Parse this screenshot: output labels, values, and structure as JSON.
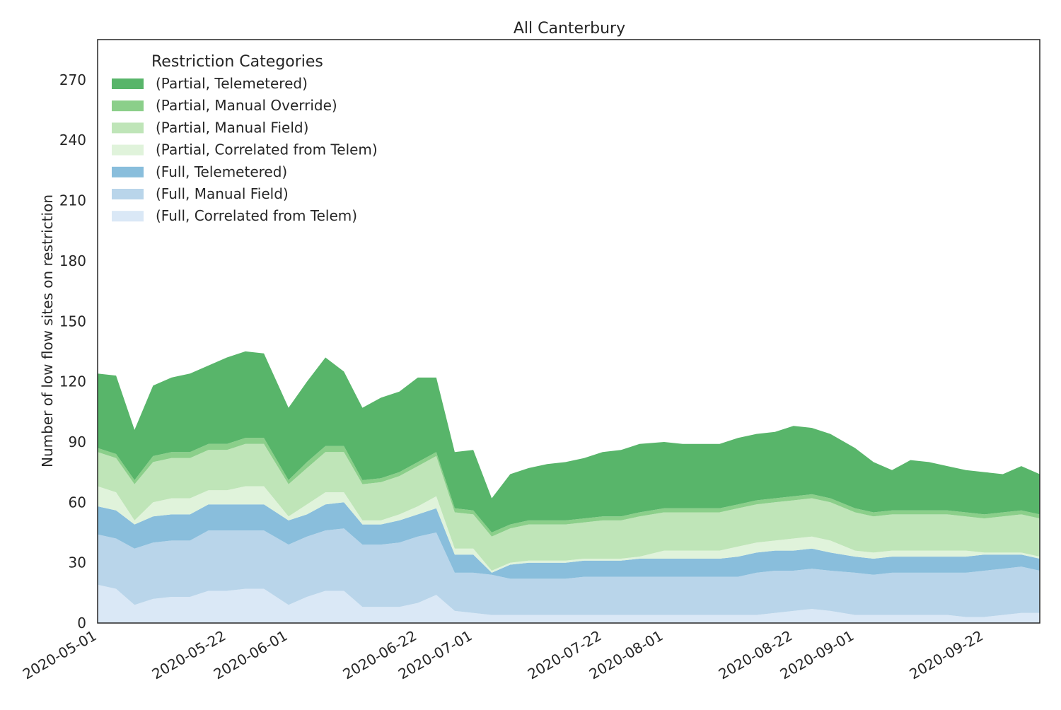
{
  "chart_data": {
    "type": "area",
    "stacked": true,
    "title": "All Canterbury",
    "xlabel": "",
    "ylabel": "Number of low flow sites on restriction",
    "ylim": [
      0,
      290
    ],
    "yticks": [
      0,
      30,
      60,
      90,
      120,
      150,
      180,
      210,
      240,
      270
    ],
    "xlim": [
      "2020-05-01",
      "2020-10-01"
    ],
    "xtick_labels": [
      "2020-05-01",
      "2020-05-22",
      "2020-06-01",
      "2020-06-22",
      "2020-07-01",
      "2020-07-22",
      "2020-08-01",
      "2020-08-22",
      "2020-09-01",
      "2020-09-22"
    ],
    "grid": false,
    "legend": {
      "title": "Restriction Categories",
      "placement": "top-left"
    },
    "x": [
      "2020-05-01",
      "2020-05-04",
      "2020-05-07",
      "2020-05-10",
      "2020-05-13",
      "2020-05-16",
      "2020-05-19",
      "2020-05-22",
      "2020-05-25",
      "2020-05-28",
      "2020-06-01",
      "2020-06-04",
      "2020-06-07",
      "2020-06-10",
      "2020-06-13",
      "2020-06-16",
      "2020-06-19",
      "2020-06-22",
      "2020-06-25",
      "2020-06-28",
      "2020-07-01",
      "2020-07-04",
      "2020-07-07",
      "2020-07-10",
      "2020-07-13",
      "2020-07-16",
      "2020-07-19",
      "2020-07-22",
      "2020-07-25",
      "2020-07-28",
      "2020-08-01",
      "2020-08-04",
      "2020-08-07",
      "2020-08-10",
      "2020-08-13",
      "2020-08-16",
      "2020-08-19",
      "2020-08-22",
      "2020-08-25",
      "2020-08-28",
      "2020-09-01",
      "2020-09-04",
      "2020-09-07",
      "2020-09-10",
      "2020-09-13",
      "2020-09-16",
      "2020-09-19",
      "2020-09-22",
      "2020-09-25",
      "2020-09-28",
      "2020-10-01"
    ],
    "series": [
      {
        "name": "(Full, Correlated from Telem)",
        "color": "#dae8f6",
        "values": [
          19,
          17,
          9,
          12,
          13,
          13,
          16,
          16,
          17,
          17,
          9,
          13,
          16,
          16,
          8,
          8,
          8,
          10,
          14,
          6,
          5,
          4,
          4,
          4,
          4,
          4,
          4,
          4,
          4,
          4,
          4,
          4,
          4,
          4,
          4,
          4,
          5,
          6,
          7,
          6,
          4,
          4,
          4,
          4,
          4,
          4,
          3,
          3,
          4,
          5,
          5
        ]
      },
      {
        "name": "(Full, Manual Field)",
        "color": "#b9d5ea",
        "values": [
          25,
          25,
          28,
          28,
          28,
          28,
          30,
          30,
          29,
          29,
          30,
          30,
          30,
          31,
          31,
          31,
          32,
          33,
          31,
          19,
          20,
          20,
          18,
          18,
          18,
          18,
          19,
          19,
          19,
          19,
          19,
          19,
          19,
          19,
          19,
          21,
          21,
          20,
          20,
          20,
          21,
          20,
          21,
          21,
          21,
          21,
          22,
          23,
          23,
          23,
          21
        ]
      },
      {
        "name": "(Full, Telemetered)",
        "color": "#89bedc",
        "values": [
          14,
          14,
          12,
          13,
          13,
          13,
          13,
          13,
          13,
          13,
          12,
          11,
          13,
          13,
          10,
          10,
          11,
          11,
          12,
          9,
          9,
          1,
          7,
          8,
          8,
          8,
          8,
          8,
          8,
          9,
          9,
          9,
          9,
          9,
          10,
          10,
          10,
          10,
          10,
          9,
          8,
          8,
          8,
          8,
          8,
          8,
          8,
          8,
          7,
          6,
          6
        ]
      },
      {
        "name": "(Partial, Correlated from Telem)",
        "color": "#e0f3db",
        "values": [
          10,
          9,
          2,
          7,
          8,
          8,
          7,
          7,
          9,
          9,
          2,
          5,
          6,
          5,
          2,
          2,
          3,
          4,
          6,
          3,
          3,
          1,
          1,
          1,
          1,
          1,
          1,
          1,
          1,
          1,
          4,
          4,
          4,
          4,
          5,
          5,
          5,
          6,
          6,
          6,
          3,
          3,
          3,
          3,
          3,
          3,
          3,
          1,
          1,
          1,
          1
        ]
      },
      {
        "name": "(Partial, Manual Field)",
        "color": "#bfe5b8",
        "values": [
          17,
          17,
          18,
          20,
          20,
          20,
          20,
          20,
          21,
          21,
          16,
          18,
          20,
          20,
          18,
          19,
          19,
          20,
          20,
          18,
          17,
          17,
          17,
          18,
          18,
          18,
          18,
          19,
          19,
          20,
          19,
          19,
          19,
          19,
          19,
          19,
          19,
          19,
          19,
          19,
          19,
          18,
          18,
          18,
          18,
          18,
          17,
          17,
          18,
          19,
          19
        ]
      },
      {
        "name": "(Partial, Manual Override)",
        "color": "#8bcf8a",
        "values": [
          2,
          2,
          2,
          3,
          3,
          3,
          3,
          3,
          3,
          3,
          2,
          3,
          3,
          3,
          2,
          2,
          2,
          2,
          2,
          2,
          2,
          2,
          2,
          2,
          2,
          2,
          2,
          2,
          2,
          2,
          2,
          2,
          2,
          2,
          2,
          2,
          2,
          2,
          2,
          2,
          2,
          2,
          2,
          2,
          2,
          2,
          2,
          2,
          2,
          2,
          2
        ]
      },
      {
        "name": "(Partial, Telemetered)",
        "color": "#58b56a",
        "values": [
          37,
          39,
          25,
          35,
          37,
          39,
          39,
          43,
          43,
          42,
          36,
          40,
          44,
          37,
          36,
          40,
          40,
          42,
          37,
          28,
          30,
          17,
          25,
          26,
          28,
          29,
          30,
          32,
          33,
          34,
          33,
          32,
          32,
          32,
          33,
          33,
          33,
          35,
          33,
          32,
          30,
          25,
          20,
          25,
          24,
          22,
          21,
          21,
          19,
          22,
          20
        ]
      }
    ]
  }
}
